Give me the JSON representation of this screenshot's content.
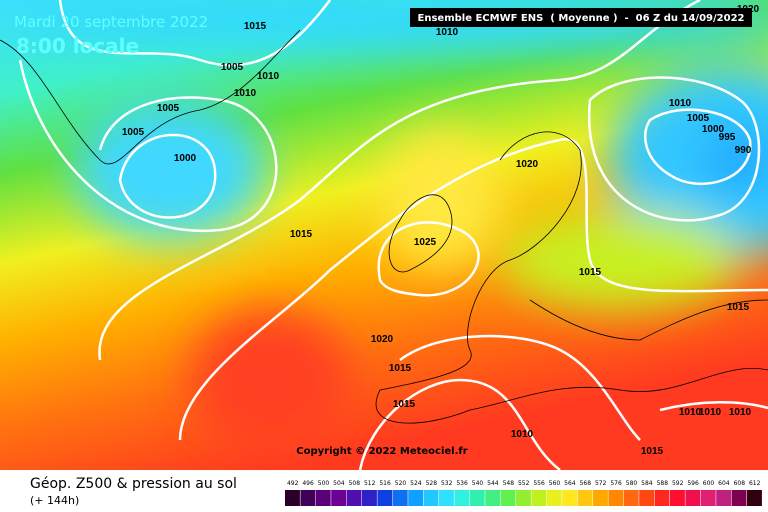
{
  "date": "Mardi 20 septembre 2022",
  "time": "8:00 locale",
  "model": "Ensemble ECMWF ENS  ( Moyenne )  -  06 Z du 14/09/2022",
  "copyright": "Copyright © 2022 Meteociel.fr",
  "legend": {
    "title": "Géop. Z500 & pression au sol",
    "subtitle": "(+ 144h)",
    "scale": [
      492,
      496,
      500,
      504,
      508,
      512,
      516,
      520,
      524,
      528,
      532,
      536,
      540,
      544,
      548,
      552,
      556,
      560,
      564,
      568,
      572,
      576,
      580,
      584,
      588,
      592,
      596,
      600,
      604,
      608,
      612
    ]
  },
  "isobar_labels": [
    "1015",
    "1005",
    "1010",
    "1010",
    "1005",
    "1005",
    "1000",
    "1010",
    "1015",
    "1025",
    "1020",
    "1010",
    "1005",
    "1000",
    "995",
    "990",
    "1020",
    "1015",
    "1015",
    "1020",
    "1015",
    "1015",
    "1010",
    "1015",
    "1010",
    "1010",
    "1010"
  ]
}
